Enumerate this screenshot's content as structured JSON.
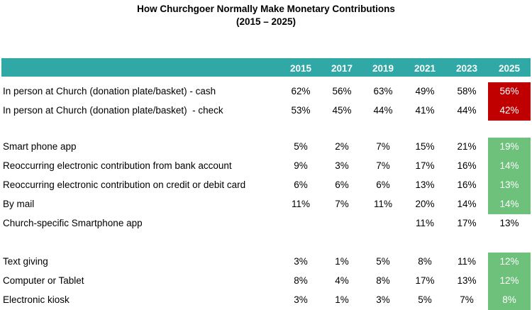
{
  "chart_data": {
    "type": "table",
    "title": "How Churchgoer Normally Make Monetary Contributions",
    "subtitle": "(2015 – 2025)",
    "columns": [
      "2015",
      "2017",
      "2019",
      "2021",
      "2023",
      "2025"
    ],
    "rows": [
      {
        "label": "In person at Church (donation plate/basket) - cash",
        "values": [
          "62%",
          "56%",
          "63%",
          "49%",
          "58%",
          "56%"
        ],
        "highlight": "red"
      },
      {
        "label": "In person at Church (donation plate/basket)  - check",
        "values": [
          "53%",
          "45%",
          "44%",
          "41%",
          "44%",
          "42%"
        ],
        "highlight": "red"
      },
      {
        "label": "Smart phone app",
        "values": [
          "5%",
          "2%",
          "7%",
          "15%",
          "21%",
          "19%"
        ],
        "highlight": "green"
      },
      {
        "label": "Reoccurring electronic contribution from bank account",
        "values": [
          "9%",
          "3%",
          "7%",
          "17%",
          "16%",
          "14%"
        ],
        "highlight": "green"
      },
      {
        "label": "Reoccurring electronic contribution on credit or debit card",
        "values": [
          "6%",
          "6%",
          "6%",
          "13%",
          "16%",
          "13%"
        ],
        "highlight": "green"
      },
      {
        "label": "By mail",
        "values": [
          "11%",
          "7%",
          "11%",
          "20%",
          "14%",
          "14%"
        ],
        "highlight": "green"
      },
      {
        "label": "Church-specific Smartphone app",
        "values": [
          "",
          "",
          "",
          "11%",
          "17%",
          "13%"
        ],
        "highlight": "none"
      },
      {
        "label": "Text giving",
        "values": [
          "3%",
          "1%",
          "5%",
          "8%",
          "11%",
          "12%"
        ],
        "highlight": "green"
      },
      {
        "label": "Computer or Tablet",
        "values": [
          "8%",
          "4%",
          "8%",
          "17%",
          "13%",
          "12%"
        ],
        "highlight": "green"
      },
      {
        "label": "Electronic kiosk",
        "values": [
          "3%",
          "1%",
          "3%",
          "5%",
          "7%",
          "8%"
        ],
        "highlight": "green"
      }
    ],
    "colors": {
      "header": "#2fa8a6",
      "red": "#c00000",
      "green": "#6dc17b"
    }
  }
}
